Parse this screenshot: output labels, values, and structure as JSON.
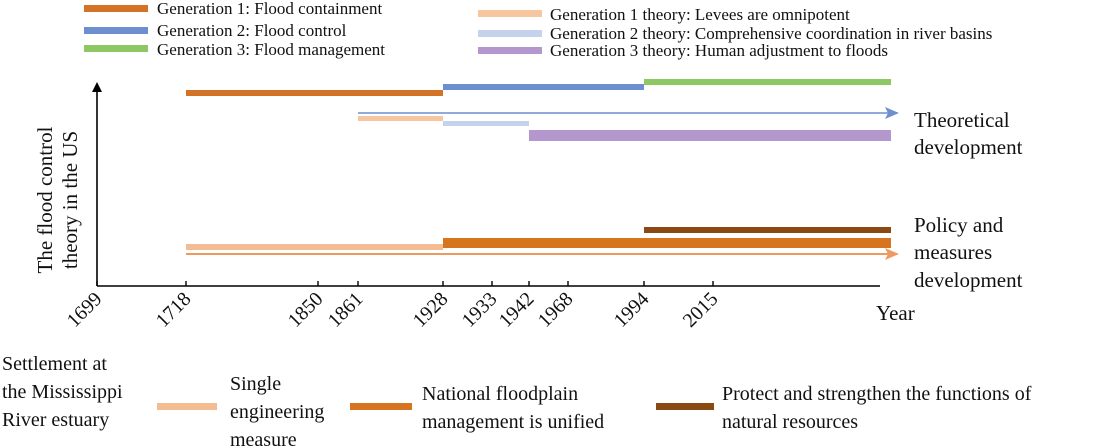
{
  "colors": {
    "gen1": "#D27328",
    "gen2": "#6D8ECF",
    "gen3": "#8DC865",
    "gen1_theory": "#F5C6A0",
    "gen2_theory": "#C4D3EB",
    "gen3_theory": "#B497CC",
    "single_engineering": "#F3BC92",
    "national_floodplain": "#D7741F",
    "protect_resources": "#8A4A14",
    "axis": "#000000",
    "theory_arrow": "#6D8ECF",
    "policy_arrow": "#EE9A5E"
  },
  "legend": [
    {
      "label": "Generation 1: Flood containment",
      "color_key": "gen1"
    },
    {
      "label": "Generation 2: Flood control",
      "color_key": "gen2"
    },
    {
      "label": "Generation 3: Flood management",
      "color_key": "gen3"
    },
    {
      "label": "Generation 1 theory: Levees are omnipotent",
      "color_key": "gen1_theory"
    },
    {
      "label": "Generation 2 theory: Comprehensive coordination in river basins",
      "color_key": "gen2_theory"
    },
    {
      "label": "Generation 3 theory: Human adjustment to floods",
      "color_key": "gen3_theory"
    }
  ],
  "y_axis_label": [
    "The flood control",
    "theory in the US"
  ],
  "x_axis_label": "Year",
  "years": [
    "1699",
    "1718",
    "1850",
    "1861",
    "1928",
    "1933",
    "1942",
    "1968",
    "1994",
    "2015"
  ],
  "track_labels": {
    "theory": [
      "Theoretical",
      "development"
    ],
    "policy": [
      "Policy and",
      "measures",
      "development"
    ]
  },
  "generation_bars": [
    {
      "name": "Generation 1",
      "start": "1718",
      "end": "1928",
      "color_key": "gen1"
    },
    {
      "name": "Generation 2",
      "start": "1928",
      "end": "1994",
      "color_key": "gen2"
    },
    {
      "name": "Generation 3",
      "start": "1994",
      "end": "Year",
      "color_key": "gen3"
    }
  ],
  "theory_bars": [
    {
      "name": "Generation 1 theory",
      "start": "1861",
      "end": "1928",
      "color_key": "gen1_theory"
    },
    {
      "name": "Generation 2 theory",
      "start": "1928",
      "end": "1942",
      "color_key": "gen2_theory"
    },
    {
      "name": "Generation 3 theory",
      "start": "1942",
      "end": "Year",
      "color_key": "gen3_theory"
    }
  ],
  "policy_bars": [
    {
      "name": "Single engineering measure",
      "start": "1718",
      "end": "1928",
      "color_key": "single_engineering"
    },
    {
      "name": "National floodplain management",
      "start": "1928",
      "end": "Year",
      "color_key": "national_floodplain"
    },
    {
      "name": "Protect natural resources",
      "start": "1994",
      "end": "Year",
      "color_key": "protect_resources"
    }
  ],
  "bottom_legend": [
    {
      "lines": [
        "Settlement at",
        "the Mississippi",
        "River estuary"
      ],
      "color_key": ""
    },
    {
      "lines": [
        "Single",
        "engineering",
        "measure"
      ],
      "color_key": "single_engineering"
    },
    {
      "lines": [
        "National floodplain",
        "management is unified"
      ],
      "color_key": "national_floodplain"
    },
    {
      "lines": [
        "Protect and strengthen the functions of",
        "natural resources"
      ],
      "color_key": "protect_resources"
    }
  ]
}
